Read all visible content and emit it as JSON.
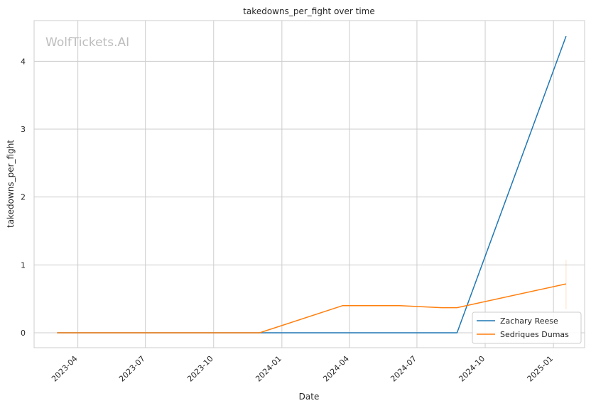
{
  "chart_data": {
    "type": "line",
    "title": "takedowns_per_fight over time",
    "xlabel": "Date",
    "ylabel": "takedowns_per_fight",
    "watermark": "WolfTickets.AI",
    "x_ticks": [
      "2023-04",
      "2023-07",
      "2023-10",
      "2024-01",
      "2024-04",
      "2024-07",
      "2024-10",
      "2025-01"
    ],
    "y_ticks": [
      0,
      1,
      2,
      3,
      4
    ],
    "xlim": [
      "2023-02-01",
      "2025-02-12"
    ],
    "ylim": [
      -0.22,
      4.6
    ],
    "grid": true,
    "legend_position": "bottom-right",
    "series": [
      {
        "name": "Zachary Reese",
        "color": "#1f77b4",
        "points": [
          {
            "x": "2023-03-04",
            "y": 0
          },
          {
            "x": "2023-12-02",
            "y": 0
          },
          {
            "x": "2024-03-23",
            "y": 0
          },
          {
            "x": "2024-06-08",
            "y": 0
          },
          {
            "x": "2024-08-03",
            "y": 0
          },
          {
            "x": "2024-08-24",
            "y": 0
          },
          {
            "x": "2025-01-18",
            "y": 4.37
          }
        ]
      },
      {
        "name": "Sedriques Dumas",
        "color": "#ff7f0e",
        "points": [
          {
            "x": "2023-03-04",
            "y": 0
          },
          {
            "x": "2023-12-02",
            "y": 0
          },
          {
            "x": "2024-03-23",
            "y": 0.4
          },
          {
            "x": "2024-06-08",
            "y": 0.4
          },
          {
            "x": "2024-08-03",
            "y": 0.37
          },
          {
            "x": "2024-08-24",
            "y": 0.37
          },
          {
            "x": "2025-01-18",
            "y": 0.72
          }
        ],
        "error_band": {
          "x": "2025-01-18",
          "low": 0.35,
          "high": 1.07
        }
      }
    ]
  }
}
